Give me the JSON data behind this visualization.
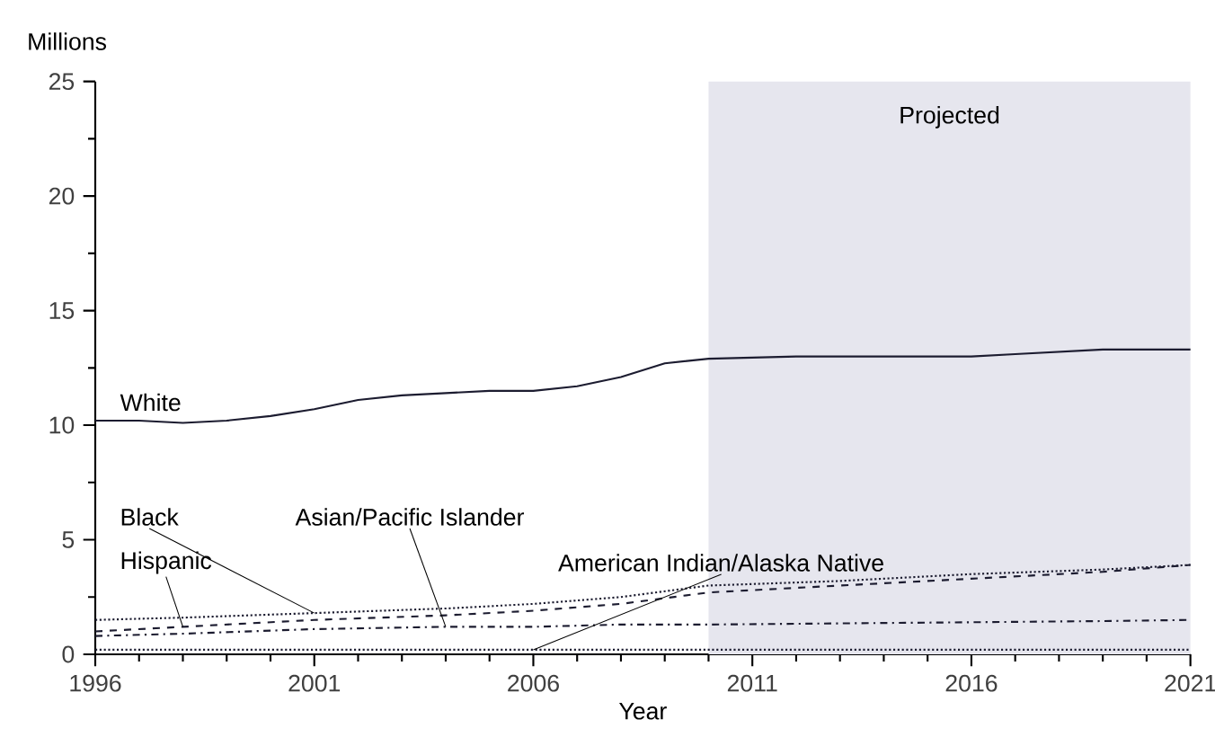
{
  "chart_data": {
    "type": "line",
    "xlabel": "Year",
    "ylabel": "Millions",
    "xlim": [
      1996,
      2021
    ],
    "xticks": [
      1996,
      2001,
      2006,
      2011,
      2016,
      2021
    ],
    "ylim": [
      0,
      25
    ],
    "yticks": [
      0,
      5,
      10,
      15,
      20,
      25
    ],
    "bands": [
      {
        "axis": "x",
        "from": 2010,
        "to": 2021,
        "label": "Projected",
        "color": "#e6e6ee"
      }
    ],
    "series": [
      {
        "name": "White",
        "color": "#1c1c30",
        "line_style": "solid",
        "x": [
          1996,
          1997,
          1998,
          1999,
          2000,
          2001,
          2002,
          2003,
          2004,
          2005,
          2006,
          2007,
          2008,
          2009,
          2010,
          2011,
          2012,
          2013,
          2014,
          2015,
          2016,
          2017,
          2018,
          2019,
          2020,
          2021
        ],
        "values": [
          10.2,
          10.2,
          10.1,
          10.2,
          10.4,
          10.7,
          11.1,
          11.3,
          11.4,
          11.5,
          11.5,
          11.7,
          12.1,
          12.7,
          12.9,
          12.95,
          13.0,
          13.0,
          13.0,
          13.0,
          13.0,
          13.1,
          13.2,
          13.3,
          13.3,
          13.3
        ]
      },
      {
        "name": "Black",
        "color": "#1c1c30",
        "line_style": "dotted",
        "x": [
          1996,
          1998,
          2001,
          2004,
          2006,
          2008,
          2010,
          2013,
          2016,
          2019,
          2021
        ],
        "values": [
          1.5,
          1.6,
          1.8,
          2.0,
          2.2,
          2.5,
          3.0,
          3.2,
          3.5,
          3.7,
          3.9
        ]
      },
      {
        "name": "Hispanic",
        "color": "#1c1c30",
        "line_style": "dashed",
        "x": [
          1996,
          1998,
          2001,
          2004,
          2006,
          2008,
          2010,
          2013,
          2016,
          2019,
          2021
        ],
        "values": [
          1.0,
          1.2,
          1.5,
          1.7,
          1.9,
          2.2,
          2.7,
          3.0,
          3.3,
          3.6,
          3.9
        ]
      },
      {
        "name": "Asian/Pacific Islander",
        "color": "#1c1c30",
        "line_style": "dashdot",
        "x": [
          1996,
          1998,
          2001,
          2004,
          2006,
          2008,
          2010,
          2013,
          2016,
          2019,
          2021
        ],
        "values": [
          0.8,
          0.9,
          1.1,
          1.2,
          1.2,
          1.3,
          1.3,
          1.35,
          1.4,
          1.45,
          1.5
        ]
      },
      {
        "name": "American Indian/Alaska Native",
        "color": "#1c1c30",
        "line_style": "dotted",
        "x": [
          1996,
          2001,
          2006,
          2011,
          2016,
          2021
        ],
        "values": [
          0.2,
          0.2,
          0.2,
          0.2,
          0.2,
          0.2
        ]
      }
    ]
  }
}
